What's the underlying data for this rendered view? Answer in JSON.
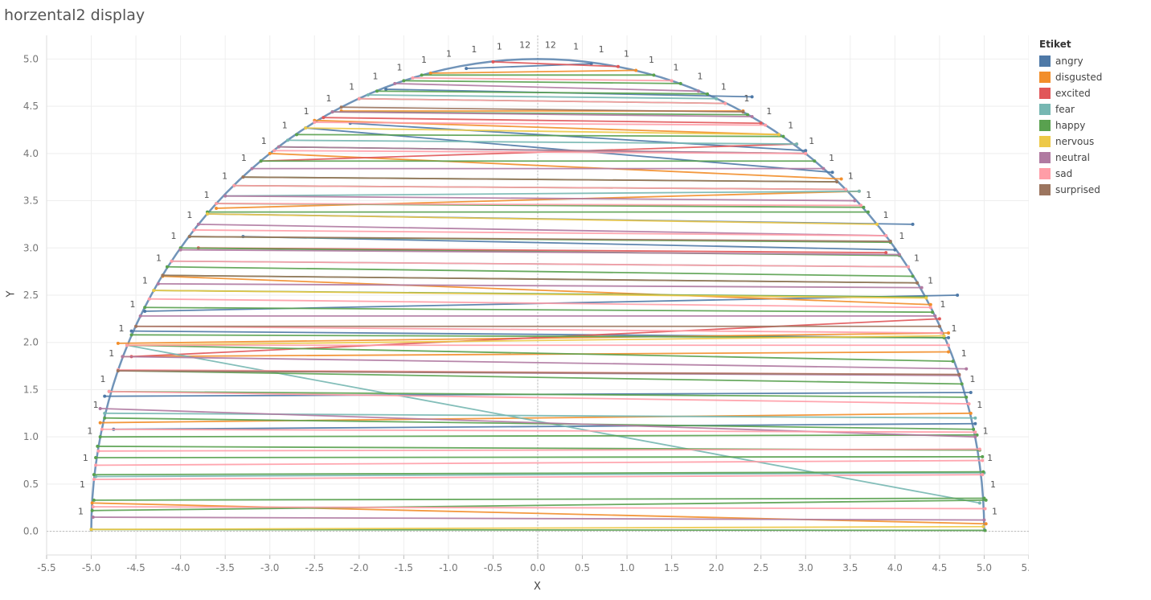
{
  "title": "horzental2 display",
  "legend": {
    "title": "Etiket",
    "items": [
      {
        "label": "angry",
        "color": "#4e79a7"
      },
      {
        "label": "disgusted",
        "color": "#f28e2b"
      },
      {
        "label": "excited",
        "color": "#e15759"
      },
      {
        "label": "fear",
        "color": "#76b7b2"
      },
      {
        "label": "happy",
        "color": "#59a14f"
      },
      {
        "label": "nervous",
        "color": "#edc948"
      },
      {
        "label": "neutral",
        "color": "#b07aa1"
      },
      {
        "label": "sad",
        "color": "#ff9da7"
      },
      {
        "label": "surprised",
        "color": "#9c755f"
      }
    ]
  },
  "chart_data": {
    "type": "line",
    "title": "horzental2 display",
    "xlabel": "X",
    "ylabel": "Y",
    "xlim": [
      -5.5,
      5.5
    ],
    "ylim": [
      -0.25,
      5.25
    ],
    "xticks": [
      "-5.5",
      "-5.0",
      "-4.5",
      "-4.0",
      "-3.5",
      "-3.0",
      "-2.5",
      "-2.0",
      "-1.5",
      "-1.0",
      "-0.5",
      "0.0",
      "0.5",
      "1.0",
      "1.5",
      "2.0",
      "2.5",
      "3.0",
      "3.5",
      "4.0",
      "4.5",
      "5.0",
      "5.5"
    ],
    "yticks": [
      "0.0",
      "0.5",
      "1.0",
      "1.5",
      "2.0",
      "2.5",
      "3.0",
      "3.5",
      "4.0",
      "4.5",
      "5.0"
    ],
    "grid": true,
    "legend_position": "right",
    "point_labels": [
      "1",
      "1",
      "1",
      "1",
      "1",
      "1",
      "1",
      "1",
      "1",
      "1",
      "12"
    ],
    "curve": "semicircle radius 5",
    "series": [
      {
        "name": "angry",
        "lines": [
          [
            -4.4,
            2.33,
            4.7,
            2.5
          ],
          [
            -3.3,
            3.12,
            4.0,
            2.98
          ],
          [
            -2.1,
            4.32,
            3.0,
            4.03
          ],
          [
            -0.8,
            4.9,
            0.6,
            4.95
          ],
          [
            -4.85,
            1.43,
            4.85,
            1.47
          ],
          [
            -3.7,
            3.36,
            4.2,
            3.25
          ],
          [
            -4.75,
            1.08,
            4.9,
            1.14
          ],
          [
            -1.7,
            4.68,
            2.4,
            4.6
          ],
          [
            -4.55,
            2.12,
            4.6,
            2.05
          ],
          [
            -2.6,
            4.27,
            3.3,
            3.8
          ]
        ]
      },
      {
        "name": "disgusted",
        "lines": [
          [
            -4.99,
            0.3,
            5.02,
            0.08
          ],
          [
            -4.65,
            1.85,
            4.6,
            1.9
          ],
          [
            -3.6,
            3.42,
            3.6,
            3.6
          ],
          [
            -2.5,
            4.35,
            2.7,
            4.2
          ],
          [
            -1.2,
            4.85,
            1.1,
            4.88
          ],
          [
            -4.9,
            1.15,
            4.85,
            1.25
          ],
          [
            -4.2,
            2.7,
            4.4,
            2.4
          ],
          [
            -3.0,
            4.0,
            3.4,
            3.73
          ],
          [
            -2.2,
            4.45,
            2.3,
            4.45
          ],
          [
            -4.7,
            1.99,
            4.6,
            2.1
          ]
        ]
      },
      {
        "name": "excited",
        "lines": [
          [
            -4.55,
            1.85,
            4.5,
            2.25
          ],
          [
            -3.1,
            3.92,
            2.9,
            4.1
          ],
          [
            -0.5,
            4.97,
            0.9,
            4.92
          ],
          [
            -3.8,
            3.0,
            3.9,
            2.95
          ],
          [
            -2.4,
            4.38,
            2.5,
            4.32
          ]
        ]
      },
      {
        "name": "fear",
        "lines": [
          [
            -4.6,
            1.97,
            4.95,
            0.3
          ],
          [
            -3.5,
            3.55,
            3.6,
            3.6
          ],
          [
            -4.95,
            0.58,
            5.0,
            0.62
          ],
          [
            -2.8,
            4.14,
            2.9,
            4.1
          ],
          [
            -4.1,
            2.86,
            4.15,
            2.8
          ],
          [
            -1.9,
            4.62,
            2.0,
            4.58
          ],
          [
            -4.85,
            1.25,
            4.9,
            1.2
          ]
        ]
      },
      {
        "name": "happy",
        "lines": [
          [
            -5.0,
            0.02,
            5.01,
            0.01
          ],
          [
            -4.99,
            0.22,
            5.02,
            0.33
          ],
          [
            -4.97,
            0.6,
            4.99,
            0.63
          ],
          [
            -4.95,
            0.78,
            4.98,
            0.79
          ],
          [
            -4.93,
            0.9,
            4.95,
            0.86
          ],
          [
            -4.8,
            1.48,
            4.8,
            1.42
          ],
          [
            -4.6,
            1.97,
            4.65,
            1.8
          ],
          [
            -4.3,
            2.55,
            4.35,
            2.48
          ],
          [
            -4.0,
            3.0,
            4.05,
            2.92
          ],
          [
            -3.7,
            3.38,
            3.7,
            3.38
          ],
          [
            -3.4,
            3.66,
            3.45,
            3.62
          ],
          [
            -3.1,
            3.92,
            3.1,
            3.92
          ],
          [
            -2.7,
            4.2,
            2.75,
            4.18
          ],
          [
            -2.3,
            4.44,
            2.35,
            4.41
          ],
          [
            -1.8,
            4.66,
            1.9,
            4.63
          ],
          [
            -1.3,
            4.83,
            1.3,
            4.83
          ],
          [
            -4.97,
            0.33,
            5.0,
            0.35
          ],
          [
            -4.4,
            2.37,
            4.42,
            2.32
          ],
          [
            -3.9,
            3.12,
            3.95,
            3.06
          ],
          [
            -2.9,
            4.07,
            3.0,
            4.0
          ],
          [
            -4.9,
            1.0,
            4.92,
            1.02
          ],
          [
            -4.7,
            1.7,
            4.75,
            1.56
          ],
          [
            -4.2,
            2.71,
            4.25,
            2.63
          ],
          [
            -3.3,
            3.75,
            3.35,
            3.7
          ],
          [
            -2.0,
            4.58,
            2.1,
            4.53
          ],
          [
            -4.55,
            2.08,
            4.55,
            2.05
          ],
          [
            -3.6,
            3.47,
            3.65,
            3.43
          ],
          [
            -1.5,
            4.77,
            1.6,
            4.74
          ],
          [
            -4.85,
            1.2,
            4.88,
            1.08
          ],
          [
            -4.15,
            2.8,
            4.2,
            2.7
          ]
        ]
      },
      {
        "name": "nervous",
        "lines": [
          [
            -5.0,
            0.02,
            4.99,
            0.05
          ],
          [
            -4.6,
            1.97,
            4.55,
            2.07
          ],
          [
            -3.7,
            3.36,
            3.8,
            3.25
          ],
          [
            -2.6,
            4.27,
            2.7,
            4.2
          ],
          [
            -4.3,
            2.55,
            4.35,
            2.47
          ]
        ]
      },
      {
        "name": "neutral",
        "lines": [
          [
            -4.98,
            0.15,
            5.0,
            0.12
          ],
          [
            -4.9,
            1.3,
            4.9,
            1.0
          ],
          [
            -4.65,
            1.85,
            4.8,
            1.72
          ],
          [
            -4.25,
            2.62,
            4.3,
            2.58
          ],
          [
            -3.8,
            3.25,
            3.9,
            3.13
          ],
          [
            -3.2,
            3.84,
            3.2,
            3.84
          ],
          [
            -2.3,
            4.44,
            2.4,
            4.39
          ],
          [
            -4.7,
            1.7,
            4.72,
            1.65
          ],
          [
            -4.0,
            2.98,
            4.05,
            2.93
          ],
          [
            -3.5,
            3.55,
            3.55,
            3.5
          ],
          [
            -4.45,
            2.28,
            4.45,
            2.28
          ],
          [
            -2.9,
            4.07,
            3.0,
            4.0
          ],
          [
            -1.6,
            4.74,
            1.8,
            4.66
          ]
        ]
      },
      {
        "name": "sad",
        "lines": [
          [
            -4.98,
            0.26,
            5.01,
            0.24
          ],
          [
            -4.97,
            0.55,
            4.98,
            0.6
          ],
          [
            -4.92,
            0.85,
            4.95,
            0.87
          ],
          [
            -4.88,
            1.08,
            4.9,
            1.05
          ],
          [
            -4.8,
            1.48,
            4.83,
            1.35
          ],
          [
            -4.7,
            1.71,
            4.72,
            1.66
          ],
          [
            -4.5,
            2.17,
            4.52,
            2.1
          ],
          [
            -4.35,
            2.46,
            4.4,
            2.37
          ],
          [
            -4.1,
            2.86,
            4.15,
            2.8
          ],
          [
            -3.85,
            3.19,
            3.9,
            3.13
          ],
          [
            -3.4,
            3.66,
            3.45,
            3.62
          ],
          [
            -2.95,
            4.03,
            3.0,
            4.0
          ],
          [
            -2.5,
            4.33,
            2.55,
            4.3
          ],
          [
            -2.0,
            4.58,
            2.1,
            4.53
          ],
          [
            -1.4,
            4.8,
            1.5,
            4.77
          ],
          [
            -4.6,
            1.97,
            4.6,
            1.97
          ],
          [
            -3.6,
            3.47,
            3.62,
            3.45
          ],
          [
            -4.95,
            0.7,
            4.98,
            0.75
          ]
        ]
      },
      {
        "name": "surprised",
        "lines": [
          [
            -4.7,
            1.7,
            4.72,
            1.66
          ],
          [
            -4.2,
            2.71,
            4.25,
            2.63
          ],
          [
            -3.3,
            3.75,
            3.35,
            3.7
          ],
          [
            -2.2,
            4.49,
            2.3,
            4.44
          ],
          [
            -4.5,
            2.17,
            4.5,
            2.17
          ],
          [
            -3.9,
            3.12,
            3.95,
            3.07
          ]
        ]
      }
    ]
  }
}
